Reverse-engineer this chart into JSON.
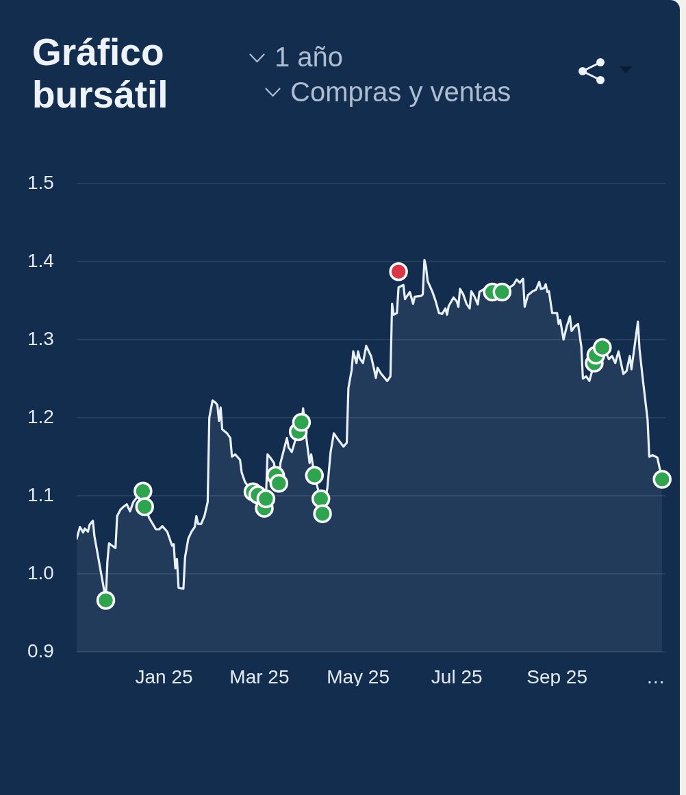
{
  "chart_data": {
    "type": "area",
    "title": "Gráfico bursátil",
    "annotations": [
      "1 año",
      "Compras y ventas"
    ],
    "xlim": [
      "2024-11-08",
      "2025-11-07"
    ],
    "xticks": [
      {
        "value": "2025-01-01",
        "label": "Jan 25"
      },
      {
        "value": "2025-03-01",
        "label": "Mar 25"
      },
      {
        "value": "2025-05-01",
        "label": "May 25"
      },
      {
        "value": "2025-07-01",
        "label": "Jul 25"
      },
      {
        "value": "2025-09-01",
        "label": "Sep 25"
      },
      {
        "value": "2025-11-01",
        "label": "…"
      }
    ],
    "ylim": [
      0.9,
      1.5
    ],
    "yticks": [
      0.9,
      {
        "value": 1,
        "label": "1.0"
      },
      1.1,
      1.2,
      1.3,
      1.4,
      1.5
    ],
    "grid": "y",
    "legend": false,
    "series": [
      {
        "color": "#e8f0fa",
        "x": [
          "2024-11-08",
          "2024-11-10",
          "2024-11-12",
          "2024-11-13",
          "2024-11-15",
          "2024-11-16",
          "2024-11-18",
          "2024-11-19",
          "2024-11-21",
          "2024-11-26",
          "2024-11-27",
          "2024-11-28",
          "2024-11-30",
          "2024-12-02",
          "2024-12-03",
          "2024-12-05",
          "2024-12-07",
          "2024-12-09",
          "2024-12-11",
          "2024-12-13",
          "2024-12-16",
          "2024-12-19",
          "2024-12-20",
          "2024-12-23",
          "2024-12-27",
          "2024-12-29",
          "2024-12-31",
          "2025-01-03",
          "2025-01-06",
          "2025-01-07",
          "2025-01-08",
          "2025-01-09",
          "2025-01-10",
          "2025-01-13",
          "2025-01-14",
          "2025-01-16",
          "2025-01-18",
          "2025-01-20",
          "2025-01-21",
          "2025-01-22",
          "2025-01-24",
          "2025-01-26",
          "2025-01-28",
          "2025-01-29",
          "2025-01-31",
          "2025-02-02",
          "2025-02-03",
          "2025-02-04",
          "2025-02-05",
          "2025-02-06",
          "2025-02-09",
          "2025-02-11",
          "2025-02-12",
          "2025-02-14",
          "2025-02-17",
          "2025-02-18",
          "2025-02-20",
          "2025-02-22",
          "2025-02-25",
          "2025-02-28",
          "2025-03-02",
          "2025-03-04",
          "2025-03-05",
          "2025-03-06",
          "2025-03-08",
          "2025-03-10",
          "2025-03-11",
          "2025-03-13",
          "2025-03-14",
          "2025-03-18",
          "2025-03-19",
          "2025-03-21",
          "2025-03-23",
          "2025-03-25",
          "2025-03-27",
          "2025-03-28",
          "2025-03-30",
          "2025-04-01",
          "2025-04-02",
          "2025-04-04",
          "2025-04-06",
          "2025-04-08",
          "2025-04-09",
          "2025-04-12",
          "2025-04-14",
          "2025-04-16",
          "2025-04-19",
          "2025-04-22",
          "2025-04-24",
          "2025-04-25",
          "2025-04-27",
          "2025-04-28",
          "2025-04-30",
          "2025-05-01",
          "2025-05-02",
          "2025-05-04",
          "2025-05-06",
          "2025-05-09",
          "2025-05-11",
          "2025-05-12",
          "2025-05-13",
          "2025-05-15",
          "2025-05-19",
          "2025-05-21",
          "2025-05-22",
          "2025-05-23",
          "2025-05-25",
          "2025-05-26",
          "2025-05-29",
          "2025-05-30",
          "2025-06-02",
          "2025-06-04",
          "2025-06-05",
          "2025-06-09",
          "2025-06-10",
          "2025-06-11",
          "2025-06-12",
          "2025-06-13",
          "2025-06-16",
          "2025-06-18",
          "2025-06-20",
          "2025-06-22",
          "2025-06-24",
          "2025-06-25",
          "2025-06-26",
          "2025-06-29",
          "2025-07-01",
          "2025-07-02",
          "2025-07-03",
          "2025-07-05",
          "2025-07-07",
          "2025-07-09",
          "2025-07-10",
          "2025-07-12",
          "2025-07-14",
          "2025-07-15",
          "2025-07-18",
          "2025-07-23",
          "2025-07-29",
          "2025-08-02",
          "2025-08-05",
          "2025-08-07",
          "2025-08-09",
          "2025-08-11",
          "2025-08-12",
          "2025-08-14",
          "2025-08-17",
          "2025-08-19",
          "2025-08-21",
          "2025-08-22",
          "2025-08-24",
          "2025-08-25",
          "2025-08-26",
          "2025-08-27",
          "2025-08-29",
          "2025-09-01",
          "2025-09-02",
          "2025-09-03",
          "2025-09-05",
          "2025-09-07",
          "2025-09-08",
          "2025-09-09",
          "2025-09-10",
          "2025-09-12",
          "2025-09-14",
          "2025-09-16",
          "2025-09-17",
          "2025-09-19",
          "2025-09-21",
          "2025-09-24",
          "2025-09-27",
          "2025-10-01",
          "2025-10-03",
          "2025-10-05",
          "2025-10-07",
          "2025-10-09",
          "2025-10-12",
          "2025-10-14",
          "2025-10-16",
          "2025-10-17",
          "2025-10-21",
          "2025-10-22",
          "2025-10-24",
          "2025-10-27",
          "2025-10-28",
          "2025-10-30",
          "2025-11-02",
          "2025-11-05"
        ],
        "values": [
          1.045,
          1.06,
          1.053,
          1.058,
          1.054,
          1.063,
          1.068,
          1.048,
          1.025,
          0.967,
          1.016,
          1.039,
          1.036,
          1.033,
          1.074,
          1.082,
          1.086,
          1.089,
          1.08,
          1.092,
          1.1,
          1.106,
          1.086,
          1.071,
          1.057,
          1.057,
          1.061,
          1.054,
          1.036,
          1.038,
          1.007,
          1.019,
          0.982,
          0.981,
          1.021,
          1.045,
          1.054,
          1.06,
          1.074,
          1.064,
          1.064,
          1.074,
          1.092,
          1.2,
          1.222,
          1.219,
          1.216,
          1.196,
          1.213,
          1.185,
          1.18,
          1.174,
          1.15,
          1.153,
          1.146,
          1.13,
          1.118,
          1.112,
          1.105,
          1.101,
          1.09,
          1.084,
          1.096,
          1.153,
          1.148,
          1.142,
          1.126,
          1.116,
          1.142,
          1.174,
          1.162,
          1.156,
          1.17,
          1.182,
          1.194,
          1.212,
          1.174,
          1.142,
          1.153,
          1.126,
          1.11,
          1.096,
          1.077,
          1.11,
          1.156,
          1.18,
          1.171,
          1.163,
          1.168,
          1.238,
          1.261,
          1.285,
          1.27,
          1.285,
          1.276,
          1.27,
          1.292,
          1.279,
          1.261,
          1.251,
          1.264,
          1.257,
          1.247,
          1.253,
          1.346,
          1.332,
          1.334,
          1.367,
          1.37,
          1.352,
          1.361,
          1.346,
          1.355,
          1.356,
          1.358,
          1.402,
          1.393,
          1.375,
          1.361,
          1.349,
          1.334,
          1.333,
          1.34,
          1.332,
          1.343,
          1.354,
          1.349,
          1.342,
          1.365,
          1.358,
          1.346,
          1.34,
          1.362,
          1.355,
          1.345,
          1.361,
          1.365,
          1.361,
          1.361,
          1.366,
          1.37,
          1.377,
          1.373,
          1.378,
          1.342,
          1.357,
          1.362,
          1.364,
          1.374,
          1.365,
          1.366,
          1.371,
          1.361,
          1.362,
          1.334,
          1.334,
          1.32,
          1.325,
          1.3,
          1.317,
          1.323,
          1.33,
          1.311,
          1.317,
          1.32,
          1.291,
          1.25,
          1.253,
          1.247,
          1.27,
          1.29,
          1.285,
          1.275,
          1.279,
          1.27,
          1.285,
          1.256,
          1.26,
          1.279,
          1.262,
          1.323,
          1.288,
          1.25,
          1.197,
          1.15,
          1.152,
          1.149,
          1.121
        ]
      },
      {
        "type": "scatter",
        "color": "#2ea44f",
        "marker": "circle",
        "x": [
          "2024-11-26",
          "2024-12-19",
          "2024-12-20",
          "2025-02-25",
          "2025-02-28",
          "2025-03-04",
          "2025-03-05",
          "2025-03-11",
          "2025-03-13",
          "2025-03-25",
          "2025-03-27",
          "2025-04-04",
          "2025-04-08",
          "2025-04-09",
          "2025-07-23",
          "2025-07-29",
          "2025-09-24",
          "2025-09-25",
          "2025-09-29",
          "2025-11-05"
        ],
        "values": [
          0.966,
          1.106,
          1.086,
          1.105,
          1.101,
          1.084,
          1.096,
          1.126,
          1.116,
          1.182,
          1.194,
          1.126,
          1.096,
          1.077,
          1.361,
          1.361,
          1.27,
          1.28,
          1.29,
          1.121
        ]
      },
      {
        "type": "scatter",
        "color": "#dc3545",
        "marker": "circle",
        "x": [
          "2025-05-26"
        ],
        "values": [
          1.387
        ]
      }
    ]
  }
}
